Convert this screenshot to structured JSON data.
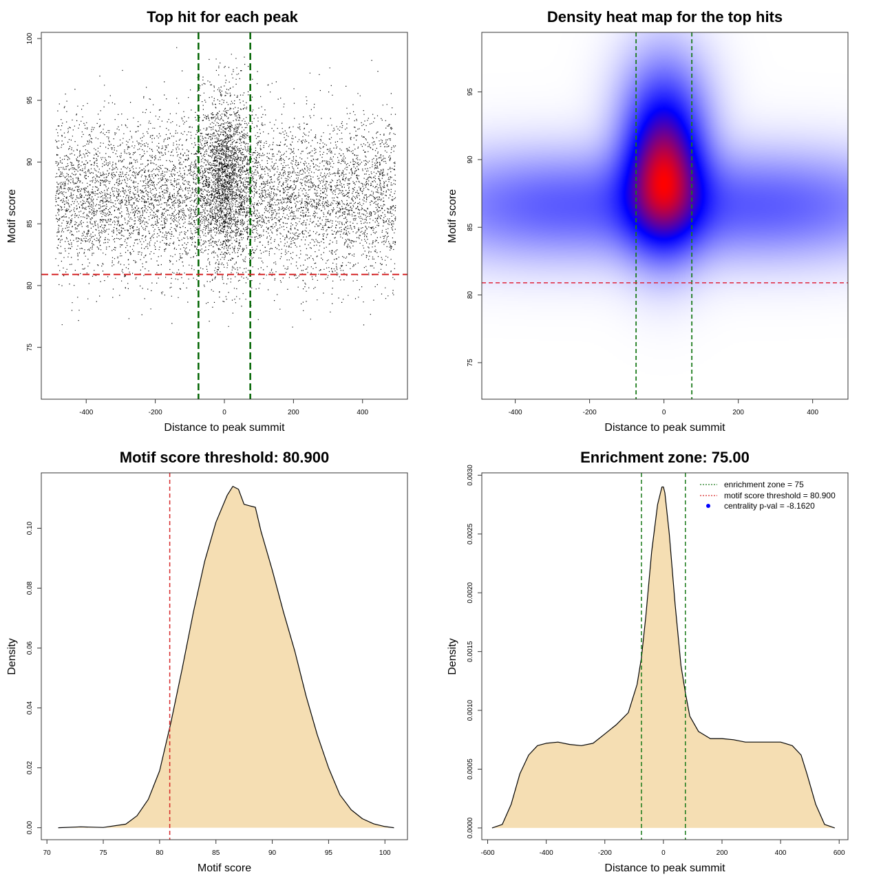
{
  "chart_data": [
    {
      "id": "scatter",
      "type": "scatter",
      "title": "Top hit for each peak",
      "xlabel": "Distance to peak summit",
      "ylabel": "Motif score",
      "xlim": [
        -530,
        530
      ],
      "ylim": [
        70.8,
        100.5
      ],
      "xticks": [
        -400,
        -200,
        0,
        200,
        400
      ],
      "yticks": [
        75,
        80,
        85,
        90,
        95,
        100
      ],
      "vlines": [
        -75,
        75
      ],
      "hline": 80.9,
      "point_count": 9000,
      "point_distribution": {
        "background": {
          "x_range": [
            -490,
            495
          ],
          "y_mean": 87.2,
          "y_sd": 3.2
        },
        "central": {
          "x_mean": 0,
          "x_sd": 40,
          "y_mean": 89,
          "y_sd": 3.4
        }
      },
      "colors": {
        "points": "#000000",
        "vlines": "#006400",
        "hline": "#d62728"
      }
    },
    {
      "id": "heatmap",
      "type": "heatmap",
      "title": "Density heat map for the top hits",
      "xlabel": "Distance to peak summit",
      "ylabel": "Motif score",
      "xlim": [
        -490,
        495
      ],
      "ylim": [
        72.3,
        99.4
      ],
      "xticks": [
        -400,
        -200,
        0,
        200,
        400
      ],
      "yticks": [
        75,
        80,
        85,
        90,
        95
      ],
      "vlines": [
        -75,
        75
      ],
      "hline": 80.9,
      "density_components": [
        {
          "x": 0,
          "sx": 70,
          "y": 88.6,
          "sy": 3.6,
          "w": 1.0
        },
        {
          "x": 0,
          "sx": 80,
          "y": 93.5,
          "sy": 3.5,
          "w": 0.35
        },
        {
          "x": -300,
          "sx": 260,
          "y": 86.6,
          "sy": 2.6,
          "w": 0.38
        },
        {
          "x": 300,
          "sx": 260,
          "y": 86.6,
          "sy": 2.6,
          "w": 0.38
        }
      ],
      "colors": {
        "low": "#ffffff",
        "mid": "#0000ff",
        "high": "#ff0000",
        "vlines": "#1a7a1a",
        "hline": "#e0253a"
      }
    },
    {
      "id": "score_density",
      "type": "area",
      "title": "Motif score threshold: 80.900",
      "xlabel": "Motif score",
      "ylabel": "Density",
      "xlim": [
        69.5,
        102
      ],
      "ylim": [
        -0.004,
        0.1185
      ],
      "xticks": [
        70,
        75,
        80,
        85,
        90,
        95,
        100
      ],
      "yticks": [
        0.0,
        0.02,
        0.04,
        0.06,
        0.08,
        0.1
      ],
      "ytick_labels": [
        "0.00",
        "0.02",
        "0.04",
        "0.06",
        "0.08",
        "0.10"
      ],
      "vline": 80.9,
      "x": [
        71,
        73,
        75,
        77,
        78,
        79,
        80,
        81,
        82,
        83,
        84,
        85,
        86,
        86.5,
        87,
        87.5,
        88,
        88.5,
        89,
        90,
        91,
        92,
        93,
        94,
        95,
        96,
        97,
        98,
        99,
        100,
        100.8
      ],
      "y": [
        0.0,
        0.0003,
        0.0001,
        0.0012,
        0.004,
        0.0095,
        0.019,
        0.035,
        0.053,
        0.072,
        0.089,
        0.102,
        0.111,
        0.114,
        0.113,
        0.108,
        0.1075,
        0.107,
        0.099,
        0.086,
        0.072,
        0.059,
        0.044,
        0.031,
        0.02,
        0.011,
        0.006,
        0.003,
        0.0013,
        0.0004,
        0.0
      ],
      "colors": {
        "fill": "#f5deb3",
        "line": "#000000",
        "vline": "#d62728"
      }
    },
    {
      "id": "distance_density",
      "type": "area",
      "title": "Enrichment zone: 75.00",
      "xlabel": "Distance to peak summit",
      "ylabel": "Density",
      "xlim": [
        -620,
        630
      ],
      "ylim": [
        -0.0001,
        0.00302
      ],
      "xticks": [
        -600,
        -400,
        -200,
        0,
        200,
        400,
        600
      ],
      "yticks": [
        0.0,
        0.0005,
        0.001,
        0.0015,
        0.002,
        0.0025,
        0.003
      ],
      "ytick_labels": [
        "0.0000",
        "0.0005",
        "0.0010",
        "0.0015",
        "0.0020",
        "0.0025",
        "0.0030"
      ],
      "vlines": [
        -75,
        75
      ],
      "x": [
        -585,
        -550,
        -520,
        -490,
        -460,
        -430,
        -400,
        -360,
        -320,
        -280,
        -240,
        -200,
        -160,
        -120,
        -90,
        -75,
        -60,
        -40,
        -20,
        -5,
        0,
        5,
        20,
        40,
        60,
        75,
        90,
        120,
        160,
        200,
        240,
        280,
        320,
        360,
        400,
        440,
        470,
        490,
        520,
        550,
        585
      ],
      "y": [
        0.0,
        3e-05,
        0.0002,
        0.00046,
        0.00062,
        0.0007,
        0.00072,
        0.00073,
        0.00071,
        0.0007,
        0.00072,
        0.0008,
        0.00088,
        0.00098,
        0.00122,
        0.00145,
        0.0018,
        0.00235,
        0.00275,
        0.0029,
        0.0029,
        0.00285,
        0.0025,
        0.0019,
        0.00138,
        0.00115,
        0.00095,
        0.00082,
        0.00076,
        0.00076,
        0.00075,
        0.00073,
        0.00073,
        0.00073,
        0.00073,
        0.0007,
        0.00062,
        0.00046,
        0.0002,
        3e-05,
        0.0
      ],
      "colors": {
        "fill": "#f5deb3",
        "line": "#000000",
        "vlines": "#1a7a1a"
      },
      "legend": {
        "placement": "top-right",
        "items": [
          {
            "label": "enrichment zone = 75",
            "kind": "line",
            "color": "#1a7a1a"
          },
          {
            "label": "motif score threshold = 80.900",
            "kind": "line",
            "color": "#d62728"
          },
          {
            "label": "centrality p-val = -8.1620",
            "kind": "point",
            "color": "#0000ff"
          }
        ]
      }
    }
  ]
}
